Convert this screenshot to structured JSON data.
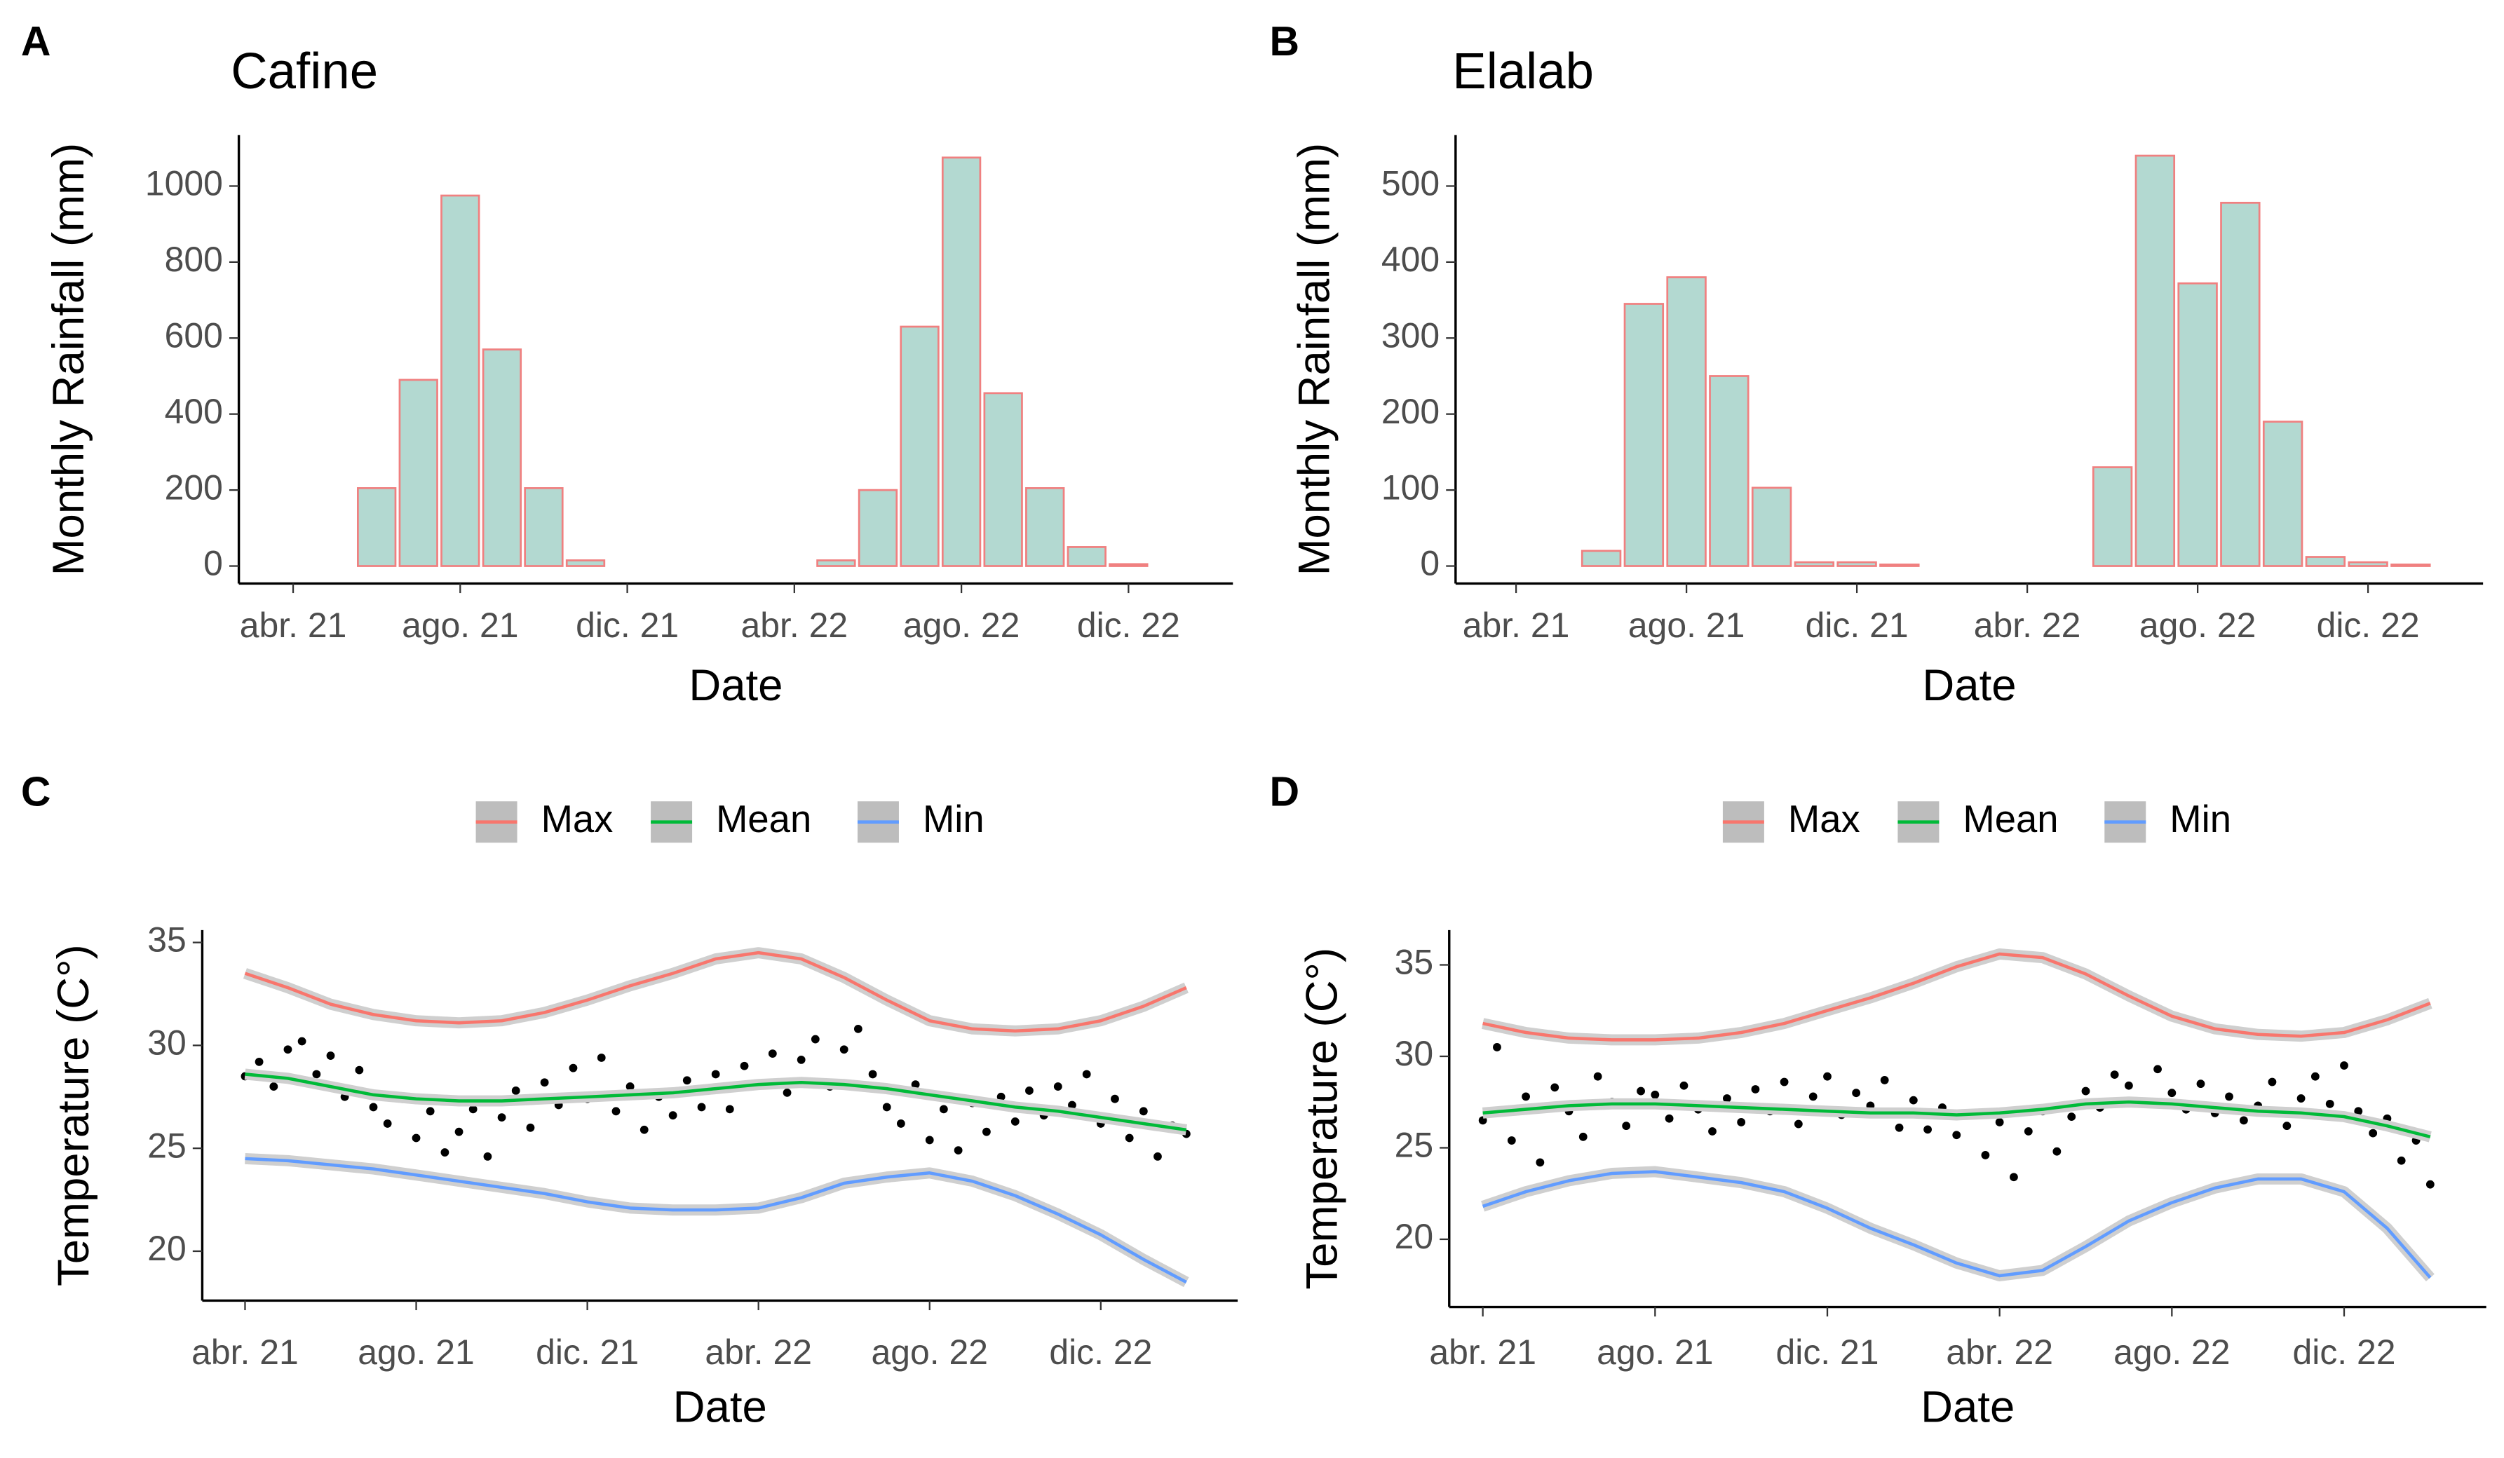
{
  "chart_data": [
    {
      "panel_label": "A",
      "title": "Cafine",
      "type": "bar",
      "x": [
        0,
        1,
        2,
        3,
        4,
        5,
        6,
        7,
        8,
        9,
        10,
        11,
        12,
        13,
        14,
        15,
        16,
        17,
        18,
        19,
        20,
        21
      ],
      "values": [
        0,
        0,
        205,
        490,
        975,
        570,
        205,
        15,
        0,
        0,
        0,
        0,
        0,
        15,
        200,
        630,
        1075,
        455,
        205,
        50,
        5,
        0
      ],
      "color": "#b3d9d1",
      "edge_color": "#f08080",
      "xlim": [
        -1.3,
        22.5
      ],
      "ylim": [
        -46,
        1134
      ],
      "xticks": [
        {
          "value": 0,
          "label": "abr. 21"
        },
        {
          "value": 4,
          "label": "ago. 21"
        },
        {
          "value": 8,
          "label": "dic. 21"
        },
        {
          "value": 12,
          "label": "abr. 22"
        },
        {
          "value": 16,
          "label": "ago. 22"
        },
        {
          "value": 20,
          "label": "dic. 22"
        }
      ],
      "yticks": [
        0,
        200,
        400,
        600,
        800,
        1000
      ],
      "xlabel": "Date",
      "ylabel": "Monthly Rainfall (mm)"
    },
    {
      "panel_label": "B",
      "title": "Elalab",
      "type": "bar",
      "x": [
        0,
        1,
        2,
        3,
        4,
        5,
        6,
        7,
        8,
        9,
        10,
        11,
        12,
        13,
        14,
        15,
        16,
        17,
        18,
        19,
        20,
        21
      ],
      "values": [
        0,
        0,
        20,
        345,
        380,
        250,
        103,
        5,
        5,
        2,
        0,
        0,
        0,
        0,
        130,
        540,
        372,
        478,
        190,
        12,
        5,
        2
      ],
      "color": "#b3d9d1",
      "edge_color": "#f08080",
      "xlim": [
        -1.42,
        22.7
      ],
      "ylim": [
        -23,
        567
      ],
      "xticks": [
        {
          "value": 0,
          "label": "abr. 21"
        },
        {
          "value": 4,
          "label": "ago. 21"
        },
        {
          "value": 8,
          "label": "dic. 21"
        },
        {
          "value": 12,
          "label": "abr. 22"
        },
        {
          "value": 16,
          "label": "ago. 22"
        },
        {
          "value": 20,
          "label": "dic. 22"
        }
      ],
      "yticks": [
        0,
        100,
        200,
        300,
        400,
        500
      ],
      "xlabel": "Date",
      "ylabel": "Monthly Rainfall (mm)"
    },
    {
      "panel_label": "C",
      "type": "line",
      "legend": "top",
      "x": [
        0,
        1,
        2,
        3,
        4,
        5,
        6,
        7,
        8,
        9,
        10,
        11,
        12,
        13,
        14,
        15,
        16,
        17,
        18,
        19,
        20,
        21,
        22
      ],
      "series": [
        {
          "name": "Max",
          "color": "#f8766d",
          "values": [
            33.5,
            32.8,
            32.0,
            31.5,
            31.2,
            31.1,
            31.2,
            31.6,
            32.2,
            32.9,
            33.5,
            34.2,
            34.5,
            34.2,
            33.3,
            32.2,
            31.2,
            30.8,
            30.7,
            30.8,
            31.2,
            31.9,
            32.8
          ]
        },
        {
          "name": "Mean",
          "color": "#00ba38",
          "values": [
            28.6,
            28.4,
            28.0,
            27.6,
            27.4,
            27.3,
            27.3,
            27.4,
            27.5,
            27.6,
            27.7,
            27.9,
            28.1,
            28.2,
            28.1,
            27.9,
            27.6,
            27.3,
            27.0,
            26.8,
            26.5,
            26.2,
            25.9
          ]
        },
        {
          "name": "Min",
          "color": "#619cff",
          "values": [
            24.5,
            24.4,
            24.2,
            24.0,
            23.7,
            23.4,
            23.1,
            22.8,
            22.4,
            22.1,
            22.0,
            22.0,
            22.1,
            22.6,
            23.3,
            23.6,
            23.8,
            23.4,
            22.7,
            21.8,
            20.8,
            19.6,
            18.5
          ]
        }
      ],
      "points": {
        "color": "#000000",
        "x": [
          0,
          0.33,
          0.67,
          1,
          1.33,
          1.67,
          2,
          2.33,
          2.67,
          3,
          3.33,
          3.67,
          4,
          4.33,
          4.67,
          5,
          5.33,
          5.67,
          6,
          6.33,
          6.67,
          7,
          7.33,
          7.67,
          8,
          8.33,
          8.67,
          9,
          9.33,
          9.67,
          10,
          10.33,
          10.67,
          11,
          11.33,
          11.67,
          12,
          12.33,
          12.67,
          13,
          13.33,
          13.67,
          14,
          14.33,
          14.67,
          15,
          15.33,
          15.67,
          16,
          16.33,
          16.67,
          17,
          17.33,
          17.67,
          18,
          18.33,
          18.67,
          19,
          19.33,
          19.67,
          20,
          20.33,
          20.67,
          21,
          21.33,
          21.67,
          22
        ],
        "values": [
          28.5,
          29.2,
          28.0,
          29.8,
          30.2,
          28.6,
          29.5,
          27.5,
          28.8,
          27.0,
          26.2,
          27.4,
          25.5,
          26.8,
          24.8,
          25.8,
          26.9,
          24.6,
          26.5,
          27.8,
          26.0,
          28.2,
          27.1,
          28.9,
          27.4,
          29.4,
          26.8,
          28.0,
          25.9,
          27.5,
          26.6,
          28.3,
          27.0,
          28.6,
          26.9,
          29.0,
          28.1,
          29.6,
          27.7,
          29.3,
          30.3,
          28.0,
          29.8,
          30.8,
          28.6,
          27.0,
          26.2,
          28.1,
          25.4,
          26.9,
          24.9,
          27.2,
          25.8,
          27.5,
          26.3,
          27.8,
          26.6,
          28.0,
          27.1,
          28.6,
          26.2,
          27.4,
          25.5,
          26.8,
          24.6,
          26.1,
          25.7
        ]
      },
      "xlim": [
        -1,
        23.2
      ],
      "ylim": [
        17.6,
        35.6
      ],
      "xticks": [
        {
          "value": 0,
          "label": "abr. 21"
        },
        {
          "value": 4,
          "label": "ago. 21"
        },
        {
          "value": 8,
          "label": "dic. 21"
        },
        {
          "value": 12,
          "label": "abr. 22"
        },
        {
          "value": 16,
          "label": "ago. 22"
        },
        {
          "value": 20,
          "label": "dic. 22"
        }
      ],
      "yticks": [
        20,
        25,
        30,
        35
      ],
      "xlabel": "Date",
      "ylabel": "Temperature (C°)"
    },
    {
      "panel_label": "D",
      "type": "line",
      "legend": "top",
      "x": [
        0,
        1,
        2,
        3,
        4,
        5,
        6,
        7,
        8,
        9,
        10,
        11,
        12,
        13,
        14,
        15,
        16,
        17,
        18,
        19,
        20,
        21,
        22
      ],
      "series": [
        {
          "name": "Max",
          "color": "#f8766d",
          "values": [
            31.8,
            31.3,
            31.0,
            30.9,
            30.9,
            31.0,
            31.3,
            31.8,
            32.5,
            33.2,
            34.0,
            34.9,
            35.6,
            35.4,
            34.5,
            33.3,
            32.2,
            31.5,
            31.2,
            31.1,
            31.3,
            32.0,
            32.9
          ]
        },
        {
          "name": "Mean",
          "color": "#00ba38",
          "values": [
            26.9,
            27.1,
            27.3,
            27.4,
            27.4,
            27.3,
            27.2,
            27.1,
            27.0,
            26.9,
            26.9,
            26.8,
            26.9,
            27.1,
            27.4,
            27.5,
            27.4,
            27.2,
            27.0,
            26.9,
            26.7,
            26.2,
            25.6
          ]
        },
        {
          "name": "Min",
          "color": "#619cff",
          "values": [
            21.8,
            22.6,
            23.2,
            23.6,
            23.7,
            23.4,
            23.1,
            22.6,
            21.7,
            20.6,
            19.7,
            18.7,
            18.0,
            18.3,
            19.6,
            21.0,
            22.0,
            22.8,
            23.3,
            23.3,
            22.6,
            20.6,
            17.9
          ]
        }
      ],
      "points": {
        "color": "#000000",
        "x": [
          0,
          0.33,
          0.67,
          1,
          1.33,
          1.67,
          2,
          2.33,
          2.67,
          3,
          3.33,
          3.67,
          4,
          4.33,
          4.67,
          5,
          5.33,
          5.67,
          6,
          6.33,
          6.67,
          7,
          7.33,
          7.67,
          8,
          8.33,
          8.67,
          9,
          9.33,
          9.67,
          10,
          10.33,
          10.67,
          11,
          11.33,
          11.67,
          12,
          12.33,
          12.67,
          13,
          13.33,
          13.67,
          14,
          14.33,
          14.67,
          15,
          15.33,
          15.67,
          16,
          16.33,
          16.67,
          17,
          17.33,
          17.67,
          18,
          18.33,
          18.67,
          19,
          19.33,
          19.67,
          20,
          20.33,
          20.67,
          21,
          21.33,
          21.67,
          22
        ],
        "values": [
          26.5,
          30.5,
          25.4,
          27.8,
          24.2,
          28.3,
          27.0,
          25.6,
          28.9,
          27.5,
          26.2,
          28.1,
          27.9,
          26.6,
          28.4,
          27.1,
          25.9,
          27.7,
          26.4,
          28.2,
          27.0,
          28.6,
          26.3,
          27.8,
          28.9,
          26.8,
          28.0,
          27.3,
          28.7,
          26.1,
          27.6,
          26.0,
          27.2,
          25.7,
          26.9,
          24.6,
          26.4,
          23.4,
          25.9,
          27.0,
          24.8,
          26.7,
          28.1,
          27.2,
          29.0,
          28.4,
          27.5,
          29.3,
          28.0,
          27.1,
          28.5,
          26.9,
          27.8,
          26.5,
          27.3,
          28.6,
          26.2,
          27.7,
          28.9,
          27.4,
          29.5,
          27.0,
          25.8,
          26.6,
          24.3,
          25.4,
          23.0
        ]
      },
      "xlim": [
        -0.78,
        23.3
      ],
      "ylim": [
        16.3,
        36.9
      ],
      "xticks": [
        {
          "value": 0,
          "label": "abr. 21"
        },
        {
          "value": 4,
          "label": "ago. 21"
        },
        {
          "value": 8,
          "label": "dic. 21"
        },
        {
          "value": 12,
          "label": "abr. 22"
        },
        {
          "value": 16,
          "label": "ago. 22"
        },
        {
          "value": 20,
          "label": "dic. 22"
        }
      ],
      "yticks": [
        20,
        25,
        30,
        35
      ],
      "xlabel": "Date",
      "ylabel": "Temperature (C°)"
    }
  ]
}
